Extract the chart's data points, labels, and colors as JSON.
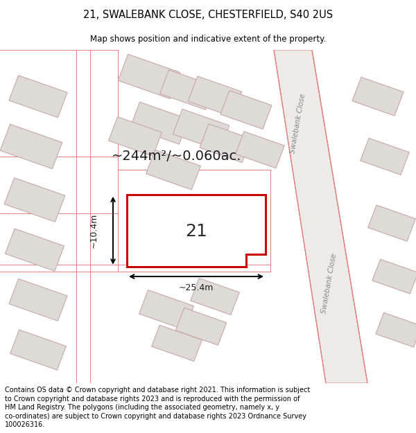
{
  "title": "21, SWALEBANK CLOSE, CHESTERFIELD, S40 2US",
  "subtitle": "Map shows position and indicative extent of the property.",
  "footer_lines": [
    "Contains OS data © Crown copyright and database right 2021. This information is subject",
    "to Crown copyright and database rights 2023 and is reproduced with the permission of",
    "HM Land Registry. The polygons (including the associated geometry, namely x, y",
    "co-ordinates) are subject to Crown copyright and database rights 2023 Ordnance Survey",
    "100026316."
  ],
  "area_text": "~244m²/~0.060ac.",
  "width_label": "~25.4m",
  "height_label": "~10.4m",
  "plot_number": "21",
  "road_label": "Swalebank Close",
  "map_bg": "#f2efec",
  "building_fill": "#dedad6",
  "building_edge": "#c8a8a8",
  "road_line_color": "#e08080",
  "road_fill": "#ebe8e5",
  "prop_edge": "#cc0000",
  "prop_fill": "#ffffff",
  "title_fontsize": 10.5,
  "subtitle_fontsize": 8.5,
  "footer_fontsize": 7.0,
  "area_fontsize": 14,
  "label_fontsize": 9,
  "plot_label_fontsize": 18
}
